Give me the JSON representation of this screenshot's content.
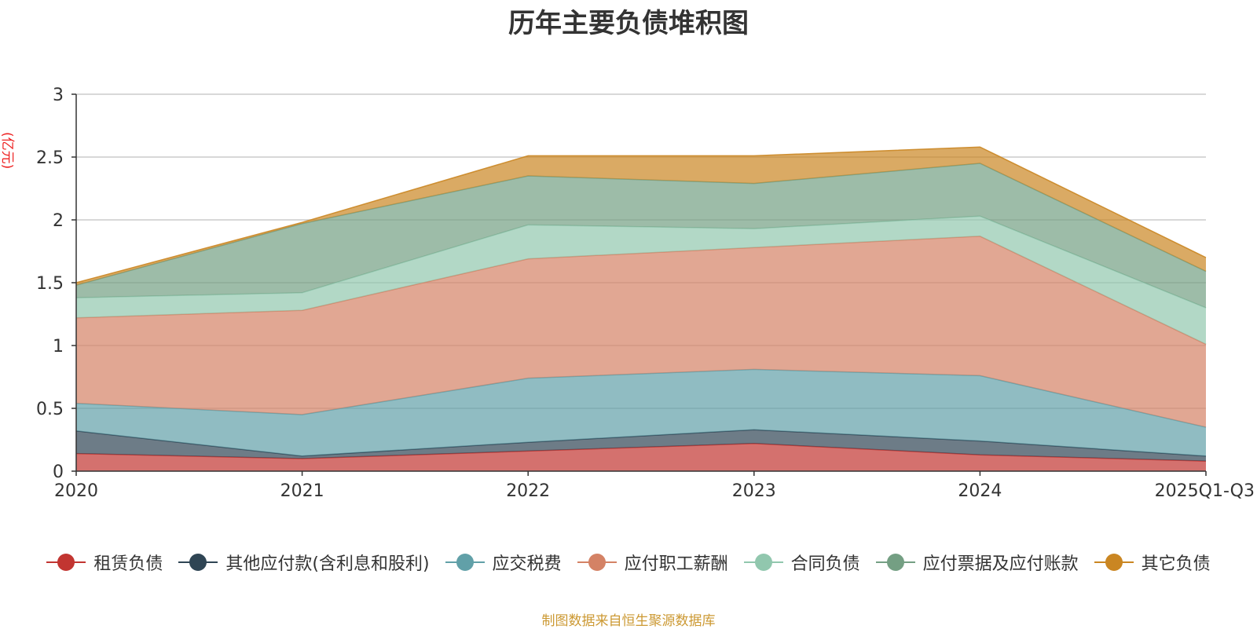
{
  "chart_data": {
    "type": "area",
    "stacked": true,
    "title": "历年主要负债堆积图",
    "unit": "(亿元)",
    "categories": [
      "2020",
      "2021",
      "2022",
      "2023",
      "2024",
      "2025Q1-Q3"
    ],
    "ylim": [
      0,
      3
    ],
    "yticks": [
      "0",
      "0.5",
      "1",
      "1.5",
      "2",
      "2.5",
      "3"
    ],
    "grid": true,
    "legend_position": "bottom",
    "series": [
      {
        "name": "租赁负债",
        "color": "#c23531",
        "values": [
          0.14,
          0.1,
          0.16,
          0.22,
          0.13,
          0.08
        ]
      },
      {
        "name": "其他应付款(含利息和股利)",
        "color": "#2f4554",
        "values": [
          0.18,
          0.02,
          0.07,
          0.11,
          0.11,
          0.04
        ]
      },
      {
        "name": "应交税费",
        "color": "#61a0a8",
        "values": [
          0.22,
          0.33,
          0.51,
          0.48,
          0.52,
          0.23
        ]
      },
      {
        "name": "应付职工薪酬",
        "color": "#d48265",
        "values": [
          0.68,
          0.83,
          0.95,
          0.97,
          1.11,
          0.66
        ]
      },
      {
        "name": "合同负债",
        "color": "#91c7ae",
        "values": [
          0.16,
          0.14,
          0.27,
          0.15,
          0.16,
          0.29
        ]
      },
      {
        "name": "应付票据及应付账款",
        "color": "#749f83",
        "values": [
          0.1,
          0.55,
          0.39,
          0.36,
          0.42,
          0.29
        ]
      },
      {
        "name": "其它负债",
        "color": "#ca8622",
        "values": [
          0.02,
          0.01,
          0.16,
          0.22,
          0.13,
          0.11
        ]
      }
    ],
    "source_note": "制图数据来自恒生聚源数据库"
  }
}
